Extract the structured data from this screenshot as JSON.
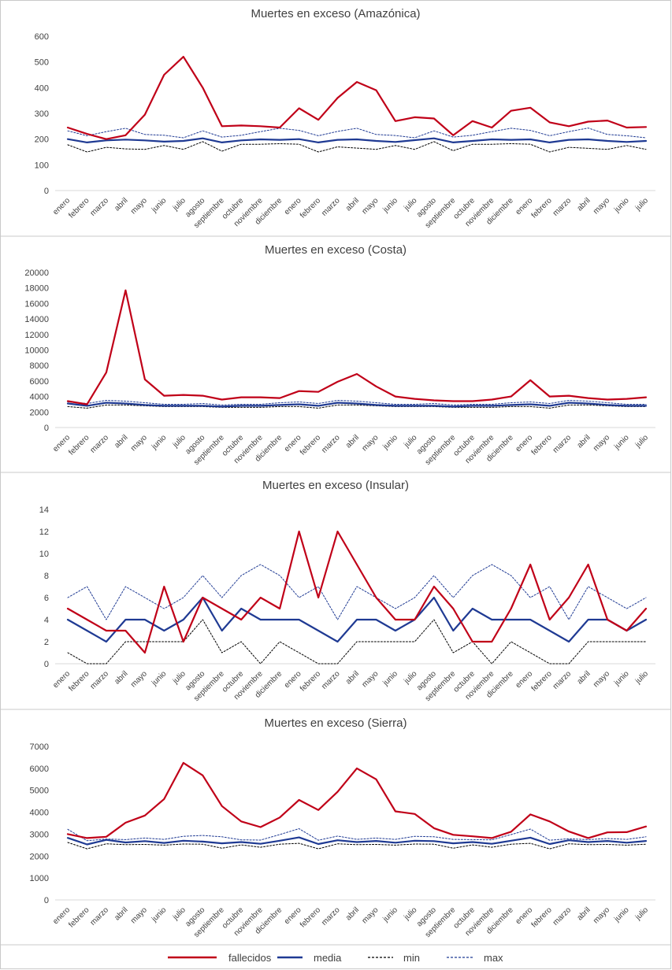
{
  "legend": {
    "fallecidos": "fallecidos",
    "media": "media",
    "min": "min",
    "max": "max"
  },
  "colors": {
    "fallecidos": "#c00018",
    "media": "#1f3a93",
    "min": "#000000",
    "max": "#1f3a93",
    "axis": "#d9d9d9",
    "text": "#404040"
  },
  "chart_data": [
    {
      "type": "line",
      "title": "Muertes en exceso (Amazónica)",
      "categories": [
        "enero",
        "febrero",
        "marzo",
        "abril",
        "mayo",
        "junio",
        "julio",
        "agosto",
        "septiembre",
        "octubre",
        "noviembre",
        "diciembre",
        "enero",
        "febrero",
        "marzo",
        "abril",
        "mayo",
        "junio",
        "julio",
        "agosto",
        "septiembre",
        "octubre",
        "noviembre",
        "diciembre",
        "enero",
        "febrero",
        "marzo",
        "abril",
        "mayo",
        "junio",
        "julio"
      ],
      "ylim": [
        0,
        600
      ],
      "yticks": [
        0,
        100,
        200,
        300,
        400,
        500,
        600
      ],
      "series": [
        {
          "name": "fallecidos",
          "values": [
            245,
            220,
            200,
            215,
            295,
            450,
            520,
            400,
            250,
            253,
            250,
            245,
            320,
            275,
            360,
            422,
            390,
            270,
            285,
            280,
            215,
            270,
            245,
            310,
            322,
            265,
            250,
            268,
            272,
            245,
            247
          ]
        },
        {
          "name": "media",
          "values": [
            200,
            187,
            195,
            198,
            195,
            190,
            193,
            203,
            187,
            195,
            199,
            197,
            200,
            187,
            197,
            199,
            193,
            189,
            196,
            203,
            187,
            193,
            199,
            197,
            199,
            187,
            197,
            199,
            193,
            189,
            193
          ]
        },
        {
          "name": "min",
          "values": [
            178,
            150,
            168,
            162,
            160,
            175,
            160,
            190,
            153,
            180,
            180,
            182,
            180,
            150,
            170,
            165,
            160,
            175,
            160,
            190,
            155,
            180,
            180,
            182,
            180,
            150,
            168,
            164,
            160,
            175,
            160
          ]
        },
        {
          "name": "max",
          "values": [
            232,
            213,
            229,
            242,
            218,
            215,
            205,
            232,
            208,
            215,
            229,
            242,
            234,
            213,
            230,
            242,
            218,
            214,
            205,
            232,
            208,
            215,
            229,
            242,
            234,
            213,
            229,
            243,
            218,
            213,
            205
          ]
        }
      ]
    },
    {
      "type": "line",
      "title": "Muertes en exceso (Costa)",
      "categories": [
        "enero",
        "febrero",
        "marzo",
        "abril",
        "mayo",
        "junio",
        "julio",
        "agosto",
        "septiembre",
        "octubre",
        "noviembre",
        "diciembre",
        "enero",
        "febrero",
        "marzo",
        "abril",
        "mayo",
        "junio",
        "julio",
        "agosto",
        "septiembre",
        "octubre",
        "noviembre",
        "diciembre",
        "enero",
        "febrero",
        "marzo",
        "abril",
        "mayo",
        "junio",
        "julio"
      ],
      "ylim": [
        0,
        20000
      ],
      "yticks": [
        0,
        2000,
        4000,
        6000,
        8000,
        10000,
        12000,
        14000,
        16000,
        18000,
        20000
      ],
      "series": [
        {
          "name": "fallecidos",
          "values": [
            3400,
            3000,
            7100,
            17700,
            6200,
            4100,
            4200,
            4100,
            3600,
            3900,
            3900,
            3800,
            4700,
            4600,
            5900,
            6900,
            5300,
            4000,
            3700,
            3500,
            3400,
            3400,
            3600,
            4000,
            6100,
            4000,
            4100,
            3800,
            3600,
            3700,
            3900
          ]
        },
        {
          "name": "media",
          "values": [
            3100,
            2800,
            3200,
            3100,
            2900,
            2800,
            2800,
            2800,
            2700,
            2800,
            2800,
            2900,
            3000,
            2800,
            3200,
            3100,
            2900,
            2800,
            2800,
            2800,
            2700,
            2800,
            2800,
            2900,
            3000,
            2800,
            3200,
            3100,
            2900,
            2800,
            2800
          ]
        },
        {
          "name": "min",
          "values": [
            2700,
            2500,
            2900,
            2900,
            2800,
            2700,
            2700,
            2700,
            2600,
            2600,
            2600,
            2700,
            2700,
            2500,
            2900,
            2900,
            2800,
            2700,
            2700,
            2700,
            2600,
            2600,
            2600,
            2700,
            2700,
            2500,
            2900,
            2900,
            2800,
            2700,
            2700
          ]
        },
        {
          "name": "max",
          "values": [
            3300,
            3100,
            3500,
            3400,
            3200,
            3000,
            3000,
            3100,
            2900,
            3000,
            3000,
            3200,
            3300,
            3100,
            3500,
            3400,
            3200,
            3000,
            3000,
            3100,
            2900,
            3000,
            3000,
            3200,
            3300,
            3100,
            3500,
            3400,
            3200,
            3000,
            3000
          ]
        }
      ]
    },
    {
      "type": "line",
      "title": "Muertes en exceso (Insular)",
      "categories": [
        "enero",
        "febrero",
        "marzo",
        "abril",
        "mayo",
        "junio",
        "julio",
        "agosto",
        "septiembre",
        "octubre",
        "noviembre",
        "diciembre",
        "enero",
        "febrero",
        "marzo",
        "abril",
        "mayo",
        "junio",
        "julio",
        "agosto",
        "septiembre",
        "octubre",
        "noviembre",
        "diciembre",
        "enero",
        "febrero",
        "marzo",
        "abril",
        "mayo",
        "junio",
        "julio"
      ],
      "ylim": [
        0,
        14
      ],
      "yticks": [
        0,
        2,
        4,
        6,
        8,
        10,
        12,
        14
      ],
      "series": [
        {
          "name": "fallecidos",
          "values": [
            5,
            4,
            3,
            3,
            1,
            7,
            2,
            6,
            5,
            4,
            6,
            5,
            12,
            6,
            12,
            9,
            6,
            4,
            4,
            7,
            5,
            2,
            2,
            5,
            9,
            4,
            6,
            9,
            4,
            3,
            5
          ]
        },
        {
          "name": "media",
          "values": [
            4,
            3,
            2,
            4,
            4,
            3,
            4,
            6,
            3,
            5,
            4,
            4,
            4,
            3,
            2,
            4,
            4,
            3,
            4,
            6,
            3,
            5,
            4,
            4,
            4,
            3,
            2,
            4,
            4,
            3,
            4
          ]
        },
        {
          "name": "min",
          "values": [
            1,
            0,
            0,
            2,
            2,
            2,
            2,
            4,
            1,
            2,
            0,
            2,
            1,
            0,
            0,
            2,
            2,
            2,
            2,
            4,
            1,
            2,
            0,
            2,
            1,
            0,
            0,
            2,
            2,
            2,
            2
          ]
        },
        {
          "name": "max",
          "values": [
            6,
            7,
            4,
            7,
            6,
            5,
            6,
            8,
            6,
            8,
            9,
            8,
            6,
            7,
            4,
            7,
            6,
            5,
            6,
            8,
            6,
            8,
            9,
            8,
            6,
            7,
            4,
            7,
            6,
            5,
            6
          ]
        }
      ]
    },
    {
      "type": "line",
      "title": "Muertes en exceso (Sierra)",
      "categories": [
        "enero",
        "febrero",
        "marzo",
        "abril",
        "mayo",
        "junio",
        "julio",
        "agosto",
        "septiembre",
        "octubre",
        "noviembre",
        "diciembre",
        "enero",
        "febrero",
        "marzo",
        "abril",
        "mayo",
        "junio",
        "julio",
        "agosto",
        "septiembre",
        "octubre",
        "noviembre",
        "diciembre",
        "enero",
        "febrero",
        "marzo",
        "abril",
        "mayo",
        "junio",
        "julio"
      ],
      "ylim": [
        0,
        7000
      ],
      "yticks": [
        0,
        1000,
        2000,
        3000,
        4000,
        5000,
        6000,
        7000
      ],
      "series": [
        {
          "name": "fallecidos",
          "values": [
            3000,
            2820,
            2880,
            3520,
            3850,
            4600,
            6250,
            5680,
            4280,
            3580,
            3320,
            3760,
            4560,
            4100,
            4930,
            6000,
            5500,
            4040,
            3920,
            3270,
            2970,
            2900,
            2820,
            3110,
            3900,
            3580,
            3120,
            2820,
            3080,
            3090,
            3350
          ]
        },
        {
          "name": "media",
          "values": [
            2830,
            2530,
            2740,
            2620,
            2680,
            2600,
            2700,
            2660,
            2580,
            2640,
            2560,
            2700,
            2850,
            2550,
            2720,
            2640,
            2690,
            2610,
            2700,
            2680,
            2580,
            2640,
            2560,
            2700,
            2840,
            2550,
            2720,
            2640,
            2690,
            2610,
            2690
          ]
        },
        {
          "name": "min",
          "values": [
            2620,
            2330,
            2560,
            2520,
            2530,
            2500,
            2550,
            2540,
            2360,
            2510,
            2400,
            2540,
            2580,
            2330,
            2560,
            2520,
            2530,
            2500,
            2550,
            2540,
            2360,
            2510,
            2400,
            2540,
            2580,
            2330,
            2560,
            2520,
            2530,
            2500,
            2540
          ]
        },
        {
          "name": "max",
          "values": [
            3220,
            2700,
            2780,
            2750,
            2820,
            2760,
            2900,
            2940,
            2880,
            2740,
            2730,
            2980,
            3250,
            2720,
            2910,
            2760,
            2820,
            2760,
            2900,
            2880,
            2760,
            2750,
            2740,
            2980,
            3230,
            2720,
            2790,
            2750,
            2800,
            2760,
            2880
          ]
        }
      ]
    }
  ]
}
